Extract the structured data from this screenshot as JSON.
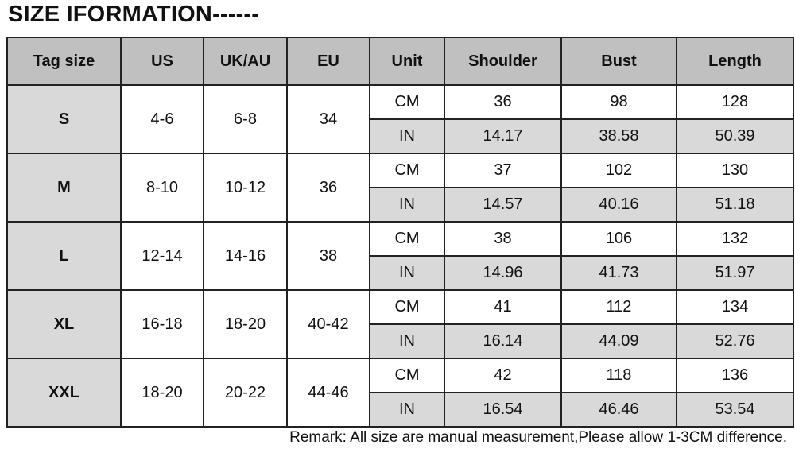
{
  "title": "SIZE IFORMATION------",
  "headers": [
    "Tag size",
    "US",
    "UK/AU",
    "EU",
    "Unit",
    "Shoulder",
    "Bust",
    "Length"
  ],
  "rows": [
    {
      "tag": "S",
      "us": "4-6",
      "uk": "6-8",
      "eu": "34",
      "cm": [
        "CM",
        "36",
        "98",
        "128"
      ],
      "in": [
        "IN",
        "14.17",
        "38.58",
        "50.39"
      ]
    },
    {
      "tag": "M",
      "us": "8-10",
      "uk": "10-12",
      "eu": "36",
      "cm": [
        "CM",
        "37",
        "102",
        "130"
      ],
      "in": [
        "IN",
        "14.57",
        "40.16",
        "51.18"
      ]
    },
    {
      "tag": "L",
      "us": "12-14",
      "uk": "14-16",
      "eu": "38",
      "cm": [
        "CM",
        "38",
        "106",
        "132"
      ],
      "in": [
        "IN",
        "14.96",
        "41.73",
        "51.97"
      ]
    },
    {
      "tag": "XL",
      "us": "16-18",
      "uk": "18-20",
      "eu": "40-42",
      "cm": [
        "CM",
        "41",
        "112",
        "134"
      ],
      "in": [
        "IN",
        "16.14",
        "44.09",
        "52.76"
      ]
    },
    {
      "tag": "XXL",
      "us": "18-20",
      "uk": "20-22",
      "eu": "44-46",
      "cm": [
        "CM",
        "42",
        "118",
        "136"
      ],
      "in": [
        "IN",
        "16.54",
        "46.46",
        "53.54"
      ]
    }
  ],
  "remark": "Remark: All size are manual measurement,Please allow 1-3CM difference.",
  "colors": {
    "header_bg": "#c0c0c0",
    "shaded_bg": "#d9d9d9",
    "border": "#222222"
  }
}
